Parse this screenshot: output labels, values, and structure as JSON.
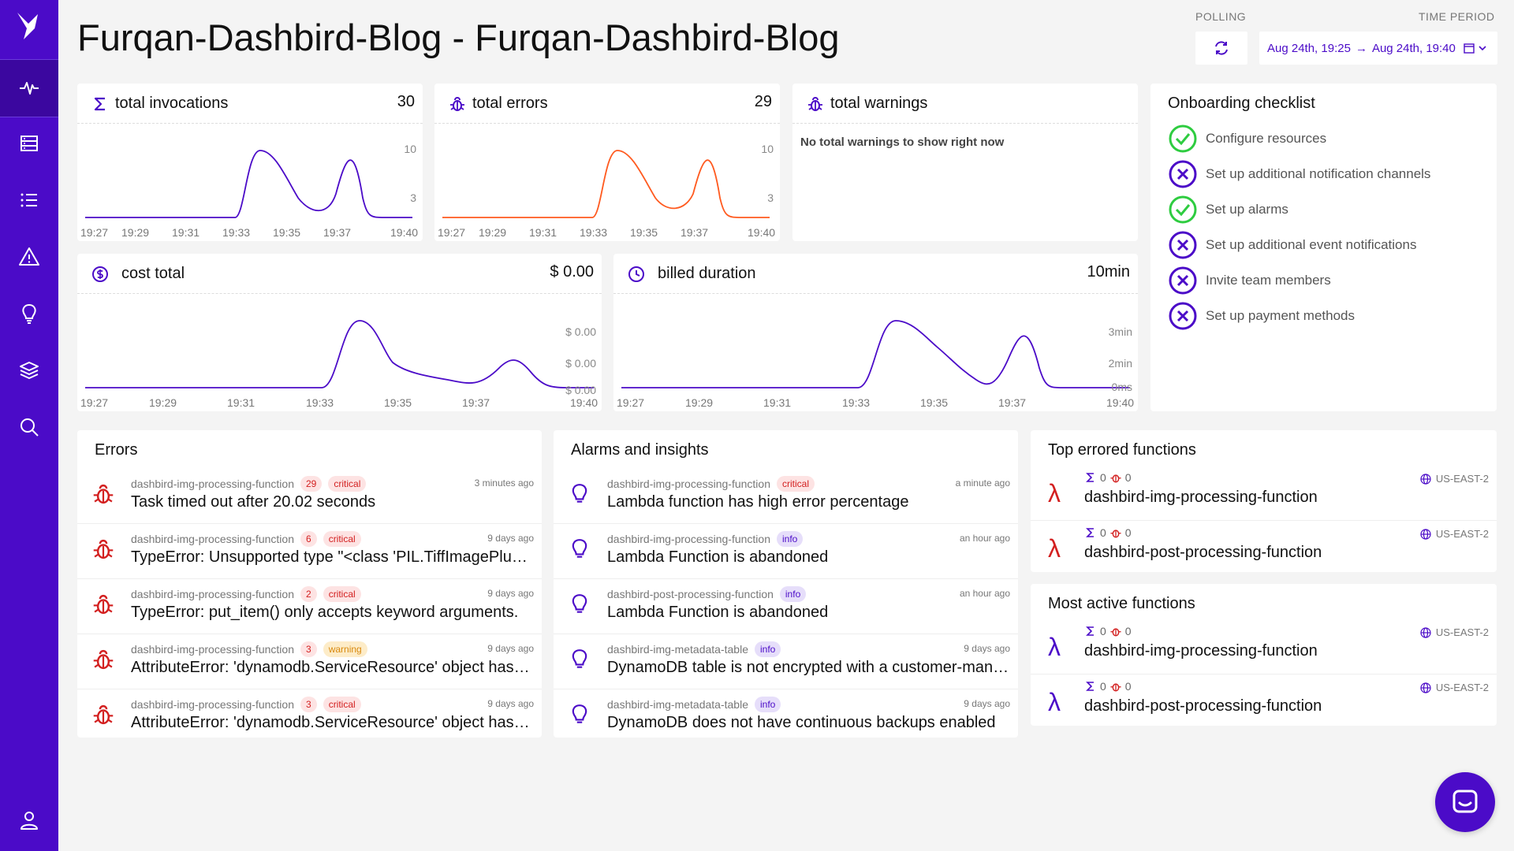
{
  "page": {
    "title": "Furqan-Dashbird-Blog - Furqan-Dashbird-Blog"
  },
  "sidebar": {
    "items": [
      {
        "icon": "pulse-icon",
        "active": true
      },
      {
        "icon": "server-icon"
      },
      {
        "icon": "list-icon"
      },
      {
        "icon": "warning-icon"
      },
      {
        "icon": "lightbulb-icon"
      },
      {
        "icon": "layers-icon"
      },
      {
        "icon": "search-icon"
      }
    ],
    "bottom_icon": "user-icon"
  },
  "header": {
    "polling_label": "POLLING",
    "time_period_label": "TIME PERIOD",
    "time_from": "Aug 24th, 19:25",
    "arrow": "→",
    "time_to": "Aug 24th, 19:40"
  },
  "colors": {
    "brand": "#4b0bc8",
    "error_line": "#ff5a1f",
    "success": "#2ecc40",
    "danger": "#d32020"
  },
  "metrics": {
    "invocations": {
      "label": "total invocations",
      "value": "30"
    },
    "errors": {
      "label": "total errors",
      "value": "29"
    },
    "warnings": {
      "label": "total warnings",
      "empty": "No total warnings to show right now"
    },
    "cost": {
      "label": "cost total",
      "value": "$ 0.00"
    },
    "duration": {
      "label": "billed duration",
      "value": "10min"
    }
  },
  "chart_data": [
    {
      "type": "line",
      "title": "total invocations",
      "x": [
        "19:27",
        "19:29",
        "19:31",
        "19:33",
        "19:35",
        "19:37",
        "19:40"
      ],
      "yticks": [
        "10",
        "3"
      ],
      "series": [
        {
          "name": "invocations",
          "color": "#4b0bc8"
        }
      ]
    },
    {
      "type": "line",
      "title": "total errors",
      "x": [
        "19:27",
        "19:29",
        "19:31",
        "19:33",
        "19:35",
        "19:37",
        "19:40"
      ],
      "yticks": [
        "10",
        "3"
      ],
      "series": [
        {
          "name": "errors",
          "color": "#ff5a1f"
        }
      ]
    },
    {
      "type": "line",
      "title": "cost total",
      "x": [
        "19:27",
        "19:29",
        "19:31",
        "19:33",
        "19:35",
        "19:37",
        "19:40"
      ],
      "yticks": [
        "$ 0.00",
        "$ 0.00",
        "$ 0.00"
      ],
      "series": [
        {
          "name": "cost",
          "color": "#4b0bc8"
        }
      ]
    },
    {
      "type": "line",
      "title": "billed duration",
      "x": [
        "19:27",
        "19:29",
        "19:31",
        "19:33",
        "19:35",
        "19:37",
        "19:40"
      ],
      "yticks": [
        "3min",
        "2min",
        "0ms"
      ],
      "series": [
        {
          "name": "duration",
          "color": "#4b0bc8"
        }
      ]
    }
  ],
  "onboarding": {
    "title": "Onboarding checklist",
    "items": [
      {
        "label": "Configure resources",
        "done": true
      },
      {
        "label": "Set up additional notification channels",
        "done": false
      },
      {
        "label": "Set up alarms",
        "done": true
      },
      {
        "label": "Set up additional event notifications",
        "done": false
      },
      {
        "label": "Invite team members",
        "done": false
      },
      {
        "label": "Set up payment methods",
        "done": false
      }
    ]
  },
  "errors": {
    "title": "Errors",
    "items": [
      {
        "source": "dashbird-img-processing-function",
        "count": "29",
        "level": "critical",
        "time": "3 minutes ago",
        "message": "Task timed out after 20.02 seconds"
      },
      {
        "source": "dashbird-img-processing-function",
        "count": "6",
        "level": "critical",
        "time": "9 days ago",
        "message": "TypeError: Unsupported type \"<class 'PIL.TiffImagePlugin.IFDRational'>\""
      },
      {
        "source": "dashbird-img-processing-function",
        "count": "2",
        "level": "critical",
        "time": "9 days ago",
        "message": "TypeError: put_item() only accepts keyword arguments."
      },
      {
        "source": "dashbird-img-processing-function",
        "count": "3",
        "level": "warning",
        "time": "9 days ago",
        "message": "AttributeError: 'dynamodb.ServiceResource' object has no attribute"
      },
      {
        "source": "dashbird-img-processing-function",
        "count": "3",
        "level": "critical",
        "time": "9 days ago",
        "message": "AttributeError: 'dynamodb.ServiceResource' object has no attribute"
      }
    ]
  },
  "alarms": {
    "title": "Alarms and insights",
    "items": [
      {
        "source": "dashbird-img-processing-function",
        "level": "critical",
        "time": "a minute ago",
        "message": "Lambda function has high error percentage"
      },
      {
        "source": "dashbird-img-processing-function",
        "level": "info",
        "time": "an hour ago",
        "message": "Lambda Function is abandoned"
      },
      {
        "source": "dashbird-post-processing-function",
        "level": "info",
        "time": "an hour ago",
        "message": "Lambda Function is abandoned"
      },
      {
        "source": "dashbird-img-metadata-table",
        "level": "info",
        "time": "9 days ago",
        "message": "DynamoDB table is not encrypted with a customer-managed key"
      },
      {
        "source": "dashbird-img-metadata-table",
        "level": "info",
        "time": "9 days ago",
        "message": "DynamoDB does not have continuous backups enabled"
      }
    ]
  },
  "top_errored": {
    "title": "Top errored functions",
    "items": [
      {
        "name": "dashbird-img-processing-function",
        "invocations": "0",
        "errors": "0",
        "region": "US-EAST-2"
      },
      {
        "name": "dashbird-post-processing-function",
        "invocations": "0",
        "errors": "0",
        "region": "US-EAST-2"
      }
    ]
  },
  "most_active": {
    "title": "Most active functions",
    "items": [
      {
        "name": "dashbird-img-processing-function",
        "invocations": "0",
        "errors": "0",
        "region": "US-EAST-2"
      },
      {
        "name": "dashbird-post-processing-function",
        "invocations": "0",
        "errors": "0",
        "region": "US-EAST-2"
      }
    ]
  }
}
